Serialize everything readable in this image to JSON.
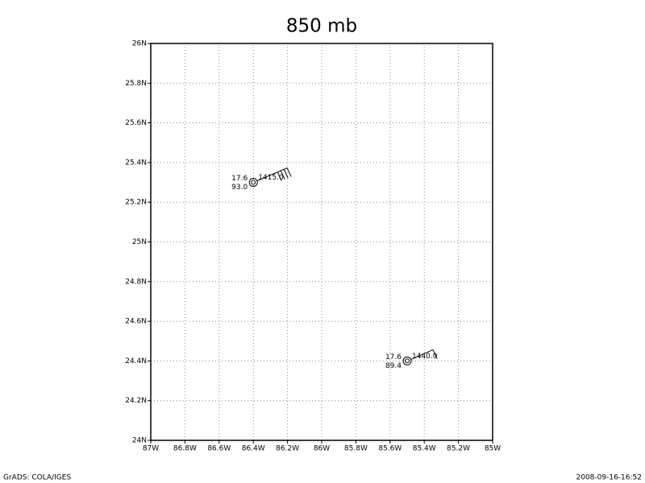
{
  "map": {
    "title": "850 mb",
    "xlim": [
      -87,
      -85
    ],
    "ylim": [
      24,
      26
    ],
    "xticks": [
      {
        "value": -87,
        "label": "87W"
      },
      {
        "value": -86.8,
        "label": "86.8W"
      },
      {
        "value": -86.6,
        "label": "86.6W"
      },
      {
        "value": -86.4,
        "label": "86.4W"
      },
      {
        "value": -86.2,
        "label": "86.2W"
      },
      {
        "value": -86,
        "label": "86W"
      },
      {
        "value": -85.8,
        "label": "85.8W"
      },
      {
        "value": -85.6,
        "label": "85.6W"
      },
      {
        "value": -85.4,
        "label": "85.4W"
      },
      {
        "value": -85.2,
        "label": "85.2W"
      },
      {
        "value": -85,
        "label": "85W"
      }
    ],
    "yticks": [
      {
        "value": 24,
        "label": "24N"
      },
      {
        "value": 24.2,
        "label": "24.2N"
      },
      {
        "value": 24.4,
        "label": "24.4N"
      },
      {
        "value": 24.6,
        "label": "24.6N"
      },
      {
        "value": 24.8,
        "label": "24.8N"
      },
      {
        "value": 25,
        "label": "25N"
      },
      {
        "value": 25.2,
        "label": "25.2N"
      },
      {
        "value": 25.4,
        "label": "25.4N"
      },
      {
        "value": 25.6,
        "label": "25.6N"
      },
      {
        "value": 25.8,
        "label": "25.8N"
      },
      {
        "value": 26,
        "label": "26N"
      }
    ],
    "grid": true,
    "stations": [
      {
        "lon": -86.4,
        "lat": 25.3,
        "temperature": "17.6",
        "humidity": "93.0",
        "height": "1415.0"
      },
      {
        "lon": -85.5,
        "lat": 24.4,
        "temperature": "17.6",
        "humidity": "89.4",
        "height": "1440.0"
      }
    ],
    "footer_left": "GrADS: COLA/IGES",
    "footer_right": "2008-09-16-16:52"
  }
}
